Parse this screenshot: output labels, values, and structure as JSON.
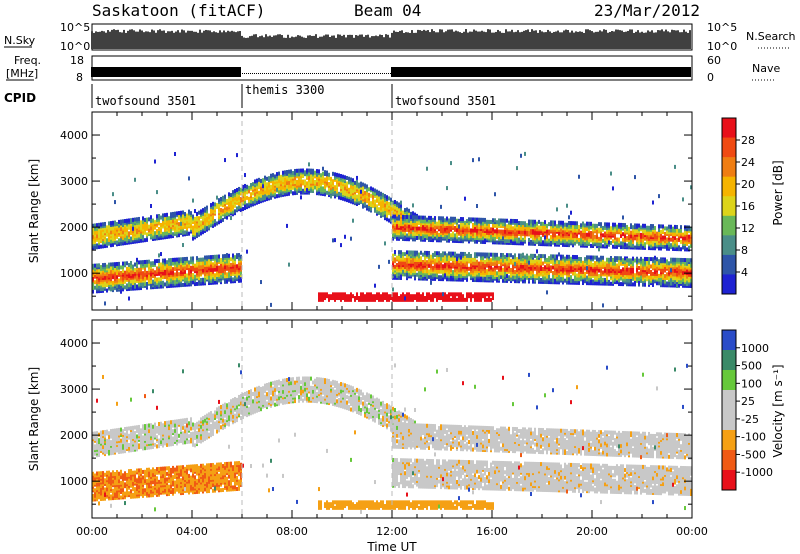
{
  "header": {
    "station": "Saskatoon (fitACF)",
    "beam": "Beam 04",
    "date": "23/Mar/2012"
  },
  "strip_labels": {
    "nsky": "N.Sky",
    "nsearch": "N.Search",
    "freq_line1": "Freq.",
    "freq_line2": "[MHz]",
    "nave": "Nave",
    "cpid": "CPID",
    "nsky_ticks": [
      "10^5",
      "10^0"
    ],
    "freq_ticks": [
      "18",
      "8"
    ],
    "nave_ticks": [
      "60",
      "0"
    ]
  },
  "colors": {
    "scale_power": [
      "#1e22d2",
      "#2e55a8",
      "#4a8e88",
      "#69b858",
      "#ddd41a",
      "#f5b400",
      "#ef7d12",
      "#f04a12",
      "#e8101a"
    ],
    "scale_velocity": [
      "#e8101a",
      "#f05a14",
      "#f5a014",
      "#c8c8c8",
      "#c8c8c8",
      "#66c83a",
      "#3a8a68",
      "#2a4cc8"
    ]
  },
  "chart_data": [
    {
      "type": "bar",
      "name": "nsky-nsearch-strip",
      "x_range_hours": [
        0,
        24
      ],
      "ylim_left": [
        "10^0",
        "10^5"
      ],
      "ylim_right": [
        "10^0",
        "10^5"
      ]
    },
    {
      "type": "bar",
      "name": "freq-nave-strip",
      "x_range_hours": [
        0,
        24
      ],
      "ylim_left": [
        8,
        18
      ],
      "ylim_right": [
        0,
        60
      ]
    },
    {
      "type": "table",
      "name": "cpid-strip",
      "segments": [
        {
          "label": "twofsound 3501",
          "start": 0,
          "end": 6
        },
        {
          "label": "themis 3300",
          "start": 6,
          "end": 12
        },
        {
          "label": "twofsound 3501",
          "start": 12,
          "end": 24
        }
      ]
    },
    {
      "type": "heatmap",
      "name": "power-panel",
      "xlabel": "",
      "ylabel": "Slant Range [km]",
      "xlim": [
        0,
        24
      ],
      "ylim": [
        200,
        4500
      ],
      "yticks": [
        "1000",
        "2000",
        "3000",
        "4000"
      ],
      "colorbar": {
        "label": "Power [dB]",
        "ticks": [
          "28",
          "24",
          "20",
          "16",
          "12",
          "8",
          "4"
        ],
        "min": 0,
        "max": 32
      }
    },
    {
      "type": "heatmap",
      "name": "velocity-panel",
      "xlabel": "Time UT",
      "ylabel": "Slant Range [km]",
      "xlim": [
        0,
        24
      ],
      "ylim": [
        200,
        4500
      ],
      "xticks": [
        "00:00",
        "04:00",
        "08:00",
        "12:00",
        "16:00",
        "20:00",
        "00:00"
      ],
      "yticks": [
        "1000",
        "2000",
        "3000",
        "4000"
      ],
      "colorbar": {
        "label": "Velocity [m s⁻¹]",
        "ticks": [
          "1000",
          "500",
          "100",
          "25",
          "-25",
          "-100",
          "-500",
          "-1000"
        ]
      }
    }
  ],
  "axes": {
    "ylabel": "Slant Range [km]",
    "xlabel": "Time UT",
    "yticks": [
      "1000",
      "2000",
      "3000",
      "4000"
    ],
    "xticks": [
      "00:00",
      "04:00",
      "08:00",
      "12:00",
      "16:00",
      "20:00",
      "00:00"
    ]
  },
  "colorbars": {
    "power_label": "Power [dB]",
    "power_ticks": [
      "28",
      "24",
      "20",
      "16",
      "12",
      "8",
      "4"
    ],
    "velocity_label": "Velocity [m s⁻¹]",
    "velocity_ticks": [
      "1000",
      "500",
      "100",
      "25",
      "-25",
      "-100",
      "-500",
      "-1000"
    ]
  }
}
